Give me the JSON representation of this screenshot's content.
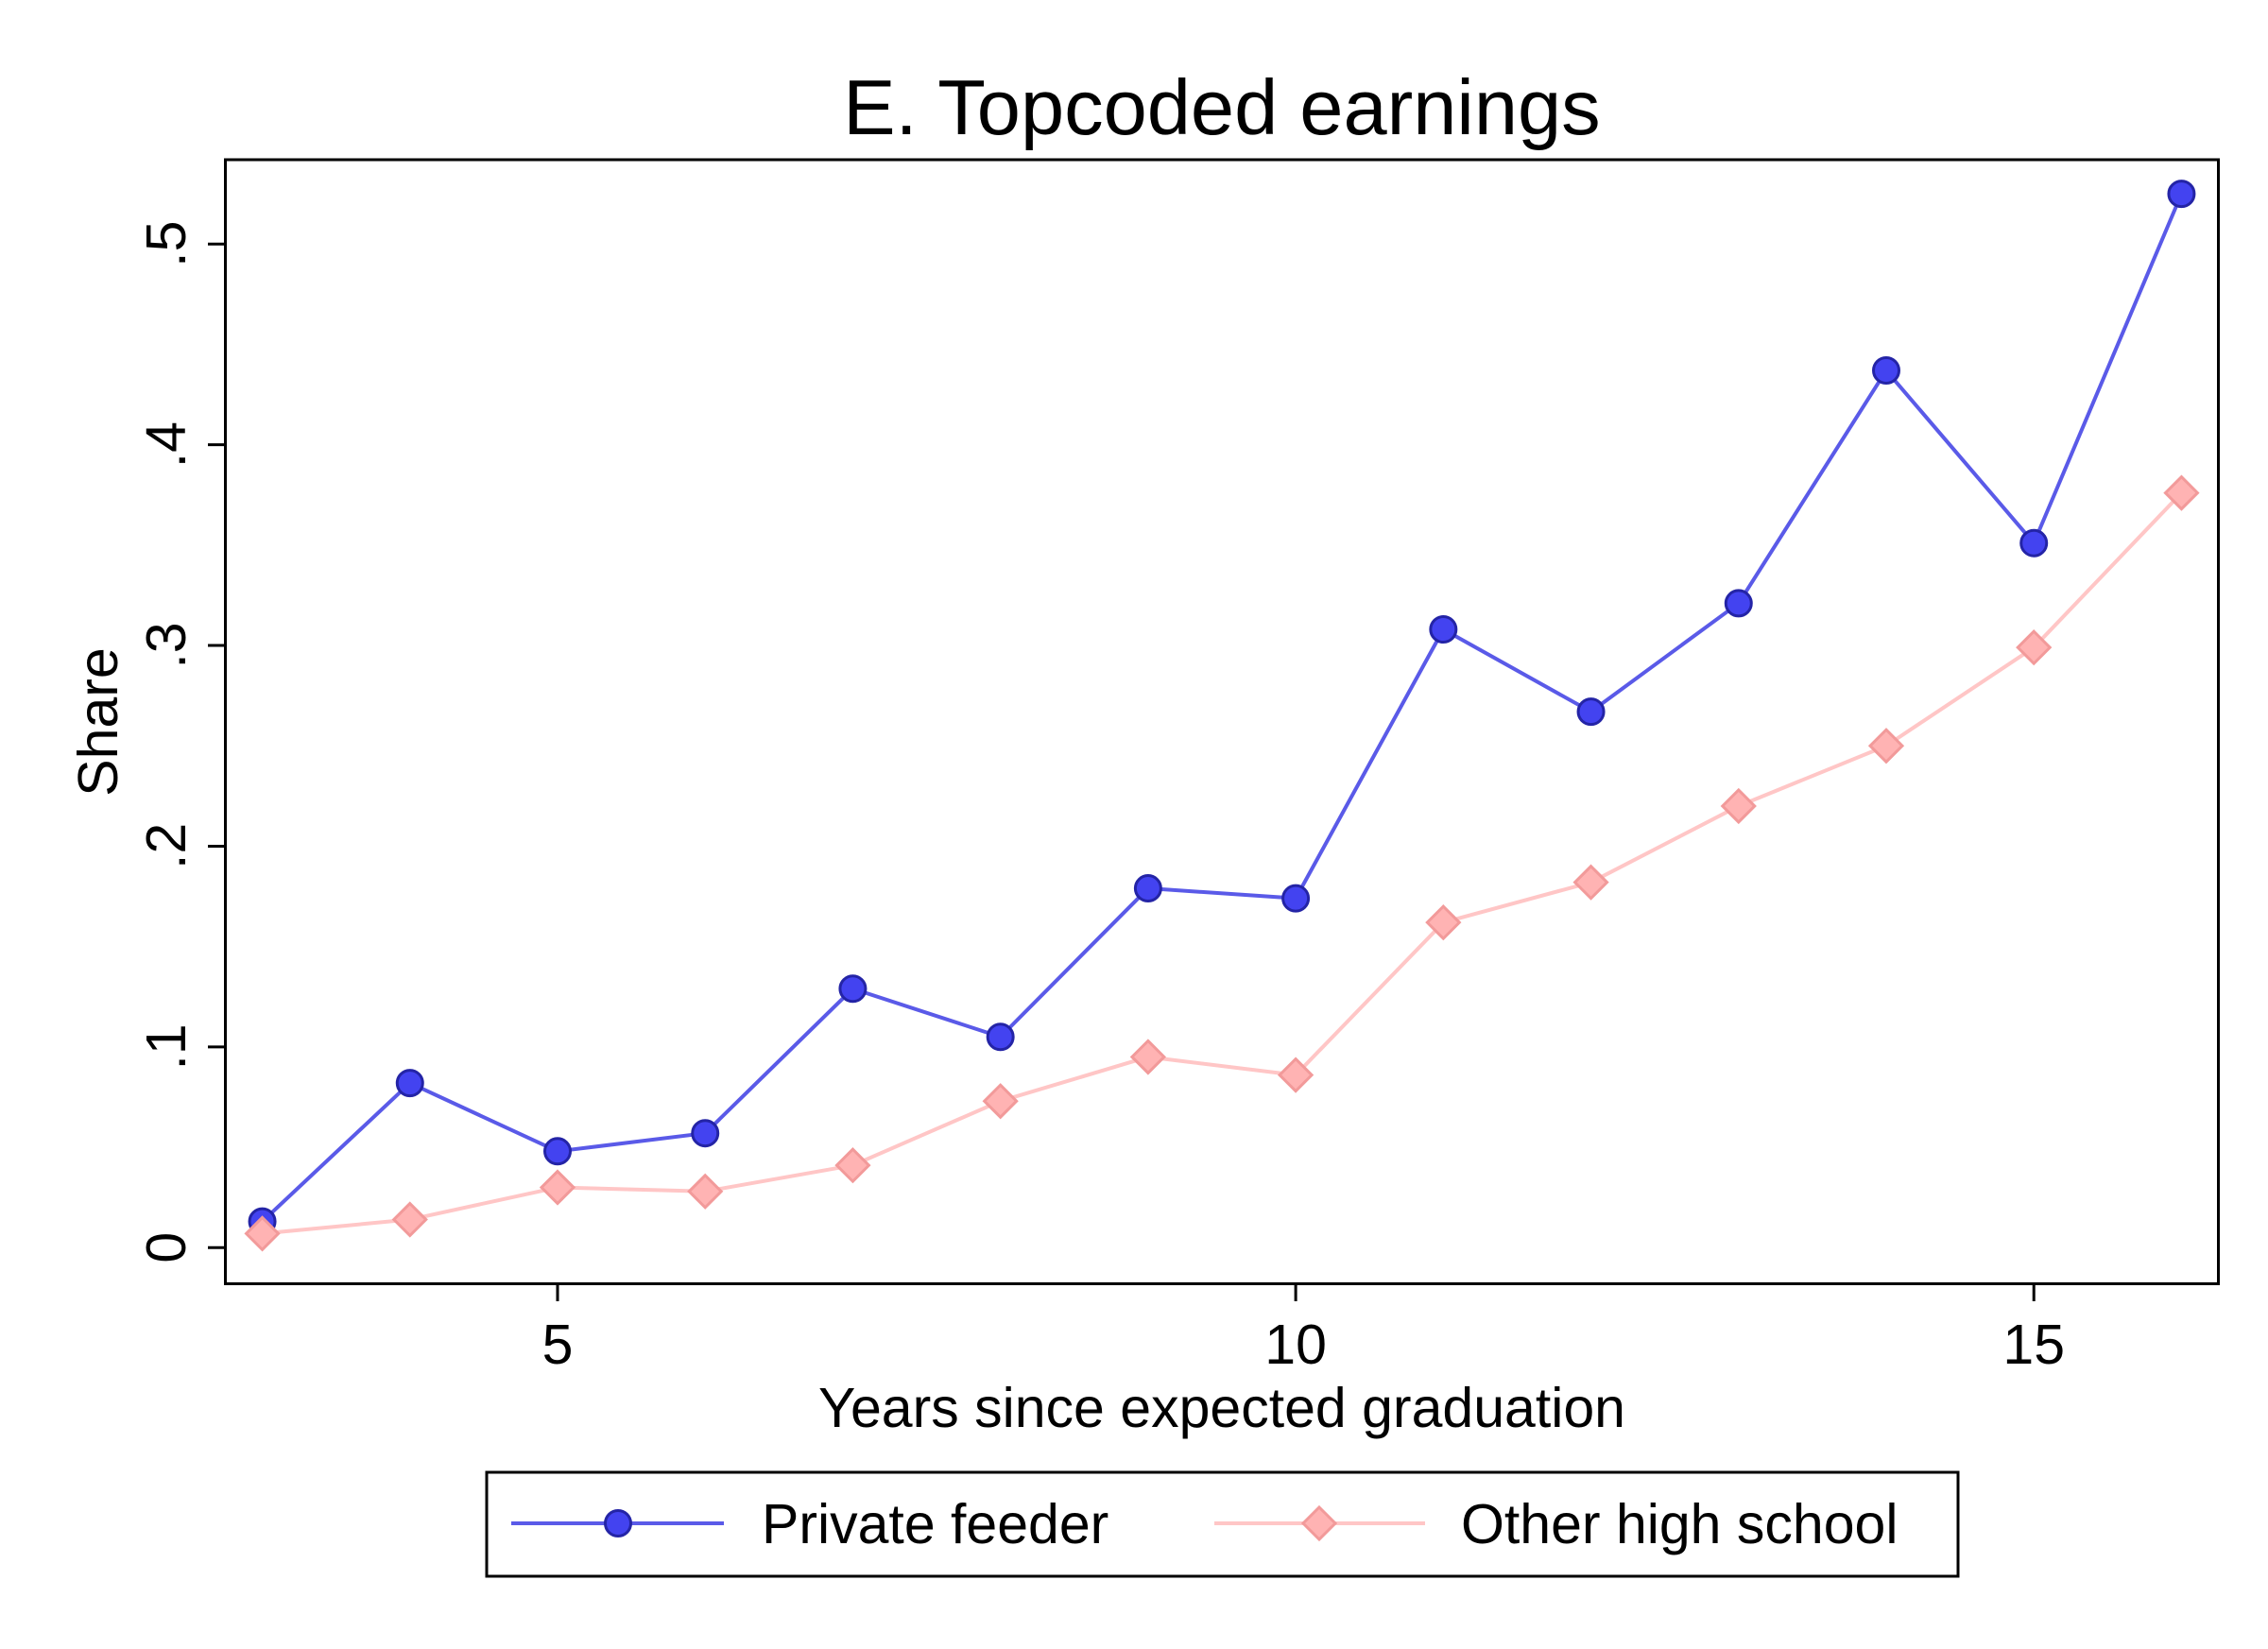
{
  "chart_data": {
    "type": "line",
    "title": "E. Topcoded earnings",
    "xlabel": "Years since expected graduation",
    "ylabel": "Share",
    "x": [
      3,
      4,
      5,
      6,
      7,
      8,
      9,
      10,
      11,
      12,
      13,
      14,
      15,
      16
    ],
    "xlim": [
      2.75,
      16.25
    ],
    "ylim": [
      -0.018,
      0.542
    ],
    "xticks": [
      5,
      10,
      15
    ],
    "xtick_labels": [
      "5",
      "10",
      "15"
    ],
    "yticks": [
      0,
      0.1,
      0.2,
      0.3,
      0.4,
      0.5
    ],
    "ytick_labels": [
      "0",
      ".1",
      ".2",
      ".3",
      ".4",
      ".5"
    ],
    "grid": false,
    "legend_position": "bottom",
    "series": [
      {
        "name": "Private feeder",
        "marker": "circle",
        "color": "#5a5ae8",
        "marker_fill": "#4343f0",
        "marker_edge": "#2424a6",
        "values": [
          0.013,
          0.082,
          0.048,
          0.057,
          0.129,
          0.105,
          0.179,
          0.174,
          0.308,
          0.267,
          0.321,
          0.437,
          0.351,
          0.525
        ]
      },
      {
        "name": "Other high school",
        "marker": "diamond",
        "color": "#ffc6c6",
        "marker_fill": "#ffb3b3",
        "marker_edge": "#f29a9a",
        "values": [
          0.007,
          0.014,
          0.03,
          0.028,
          0.041,
          0.073,
          0.095,
          0.086,
          0.162,
          0.182,
          0.22,
          0.25,
          0.299,
          0.376
        ]
      }
    ]
  }
}
